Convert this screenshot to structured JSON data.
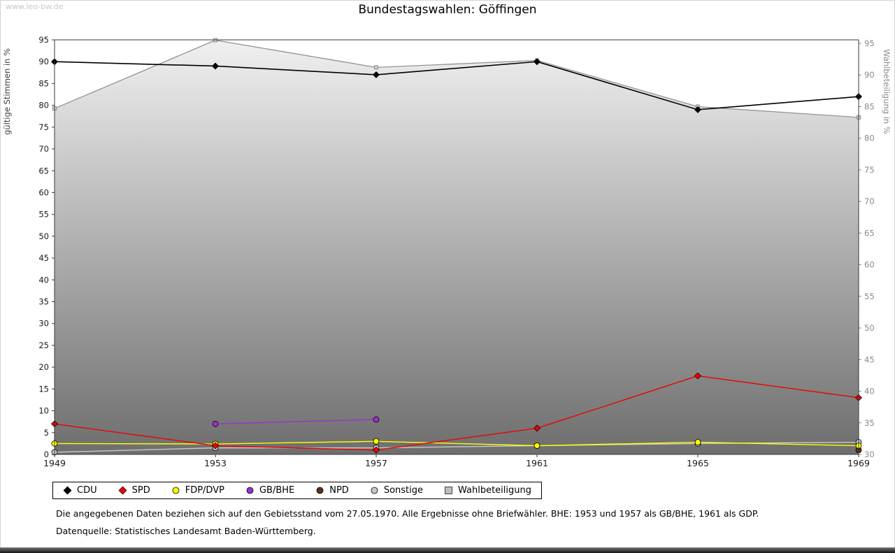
{
  "watermark": "www.leo-bw.de",
  "title": "Bundestagswahlen: Göffingen",
  "footnotes": [
    "Die angegebenen Daten beziehen sich auf den Gebietsstand vom 27.05.1970. Alle Ergebnisse ohne Briefwähler. BHE: 1953 und 1957 als GB/BHE, 1961 als GDP.",
    "Datenquelle: Statistisches Landesamt Baden-Württemberg."
  ],
  "chart_data": {
    "type": "line",
    "title": "Bundestagswahlen: Göffingen",
    "x": [
      1949,
      1953,
      1957,
      1961,
      1965,
      1969
    ],
    "left_axis": {
      "label": "gültige Stimmen in %",
      "min": 0,
      "max": 95,
      "tick_step": 5
    },
    "right_axis": {
      "label": "Wahlbeteiligung in %",
      "min": 30,
      "max": 95,
      "tick_step": 5
    },
    "legend_position": "bottom",
    "grid": false,
    "series": [
      {
        "name": "CDU",
        "color": "#000000",
        "marker": "diamond",
        "axis": "left",
        "values": [
          90,
          89,
          87,
          90,
          79,
          82
        ]
      },
      {
        "name": "SPD",
        "color": "#ee0000",
        "marker": "diamond",
        "axis": "left",
        "values": [
          7,
          2,
          1,
          6,
          18,
          13
        ]
      },
      {
        "name": "FDP/DVP",
        "color": "#ffff00",
        "marker": "circle",
        "axis": "left",
        "values": [
          2.5,
          2.4,
          3,
          2,
          2.8,
          2
        ]
      },
      {
        "name": "GB/BHE",
        "color": "#9932cc",
        "marker": "circle",
        "axis": "left",
        "values": [
          null,
          7,
          8,
          null,
          null,
          null
        ]
      },
      {
        "name": "NPD",
        "color": "#5c3317",
        "marker": "circle",
        "axis": "left",
        "values": [
          null,
          null,
          null,
          null,
          null,
          1
        ]
      },
      {
        "name": "Sonstige",
        "color": "#c8c8c8",
        "marker": "circle",
        "axis": "left",
        "values": [
          0.5,
          1.5,
          1.5,
          2,
          2.5,
          2.8
        ]
      },
      {
        "name": "Wahlbeteiligung",
        "color": "#9c9c9c",
        "marker": "square",
        "axis": "right",
        "type": "area",
        "values": [
          84.7,
          95.5,
          91.2,
          92.3,
          85.0,
          83.3
        ]
      }
    ]
  }
}
